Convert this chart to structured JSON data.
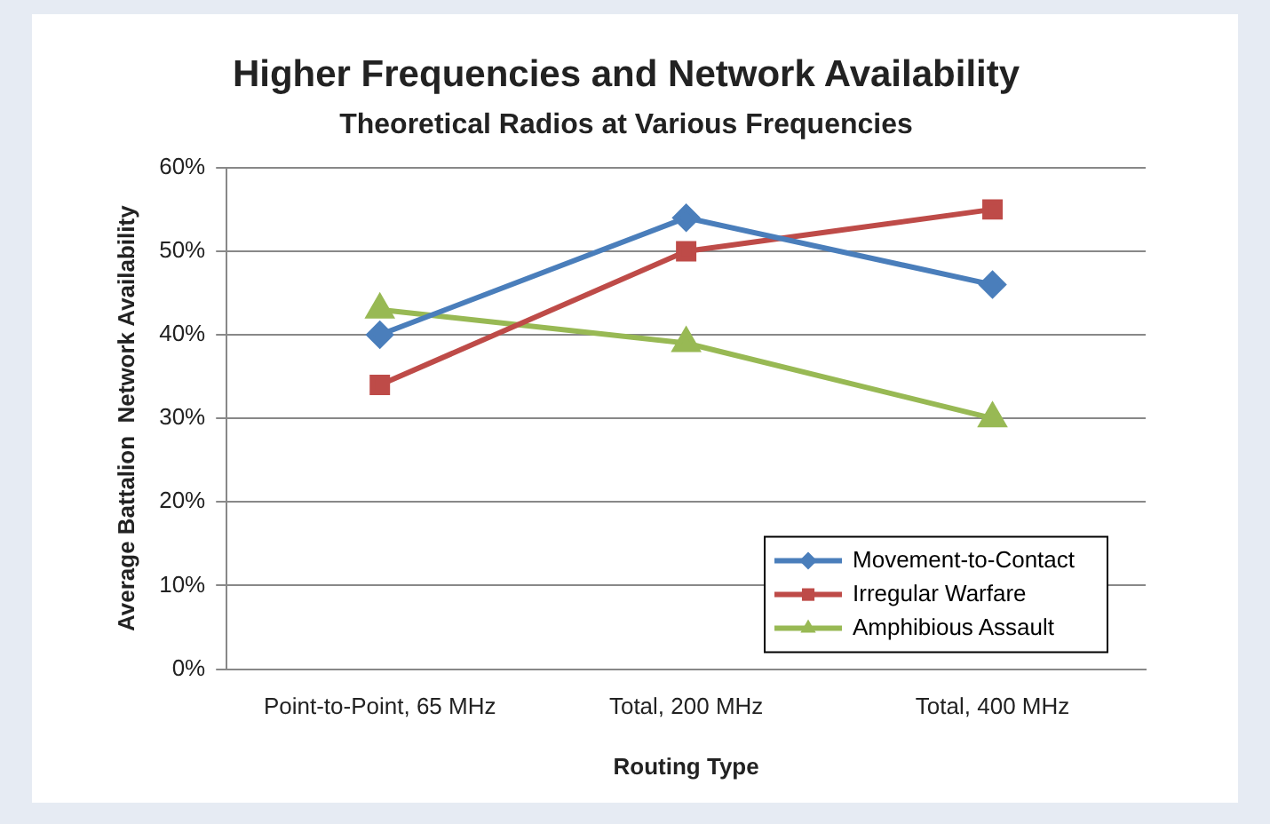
{
  "chart_data": {
    "type": "line",
    "title": "Higher Frequencies and Network Availability",
    "subtitle": "Theoretical Radios at Various Frequencies",
    "xlabel": "Routing Type",
    "ylabel": "Average Battalion  Network Availability",
    "categories": [
      "Point-to-Point, 65 MHz",
      "Total, 200 MHz",
      "Total, 400 MHz"
    ],
    "series": [
      {
        "name": "Movement-to-Contact",
        "color": "#4a7ebb",
        "marker": "diamond",
        "values": [
          40,
          54,
          46
        ]
      },
      {
        "name": "Irregular Warfare",
        "color": "#be4b48",
        "marker": "square",
        "values": [
          34,
          50,
          55
        ]
      },
      {
        "name": "Amphibious Assault",
        "color": "#98b954",
        "marker": "triangle",
        "values": [
          43,
          39,
          30
        ]
      }
    ],
    "ylim": [
      0,
      60
    ],
    "yticks": [
      {
        "value": 0,
        "label": "0%"
      },
      {
        "value": 10,
        "label": "10%"
      },
      {
        "value": 20,
        "label": "20%"
      },
      {
        "value": 30,
        "label": "30%"
      },
      {
        "value": 40,
        "label": "40%"
      },
      {
        "value": 50,
        "label": "50%"
      },
      {
        "value": 60,
        "label": "60%"
      }
    ],
    "grid": "y",
    "legend": "bottom right",
    "line_style": "solid"
  }
}
